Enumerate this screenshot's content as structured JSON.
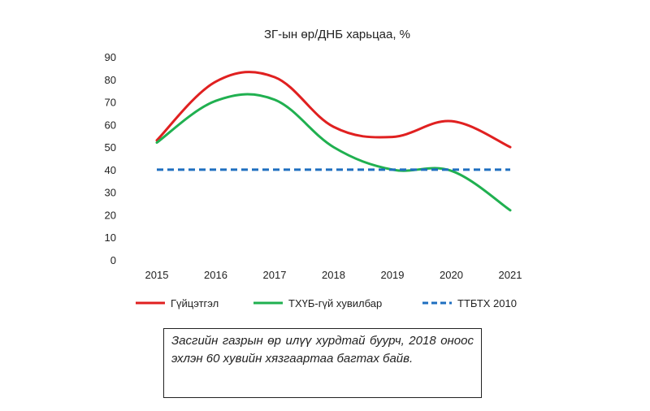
{
  "chart_data": {
    "type": "line",
    "title": "ЗГ-ын өр/ДНБ харьцаа, %",
    "xlabel": "",
    "ylabel": "",
    "x": [
      "2015",
      "2016",
      "2017",
      "2018",
      "2019",
      "2020",
      "2021"
    ],
    "ylim": [
      0,
      90
    ],
    "yticks": [
      0,
      10,
      20,
      30,
      40,
      50,
      60,
      70,
      80,
      90
    ],
    "grid": false,
    "legend_position": "bottom",
    "smooth": true,
    "series": [
      {
        "name": "Гүйцэтгэл",
        "values": [
          53,
          79,
          81,
          59,
          54.5,
          61.5,
          50
        ],
        "color": "#e02020",
        "style": "solid"
      },
      {
        "name": "ТХҮБ-гүй хувилбар",
        "values": [
          52,
          70.5,
          71,
          50,
          40,
          39.5,
          22
        ],
        "color": "#20b050",
        "style": "solid"
      },
      {
        "name": "ТТБТХ 2010",
        "values": [
          40,
          40,
          40,
          40,
          40,
          40,
          40
        ],
        "color": "#1f6fc0",
        "style": "dashed"
      }
    ]
  },
  "note": {
    "text": "Засгийн газрын өр илүү хурдтай буурч, 2018 оноос эхлэн 60 хувийн хязгаартаа багтах байв."
  }
}
